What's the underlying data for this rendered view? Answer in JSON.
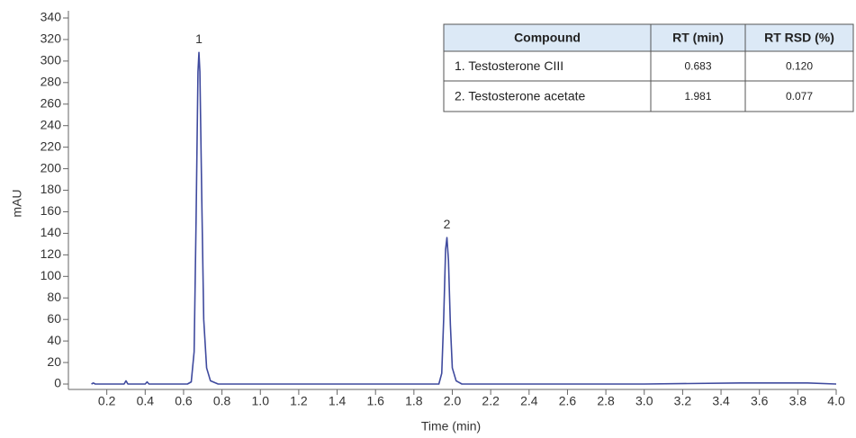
{
  "chart_data": {
    "type": "line",
    "x_label": "Time (min)",
    "y_label": "mAU",
    "xlim": [
      0,
      4
    ],
    "ylim": [
      -5,
      340
    ],
    "xticks": [
      0.2,
      0.4,
      0.6,
      0.8,
      {
        "value": 1,
        "label": "1.0"
      },
      1.2,
      1.4,
      1.6,
      1.8,
      {
        "value": 2,
        "label": "2.0"
      },
      2.2,
      2.4,
      2.6,
      2.8,
      {
        "value": 3,
        "label": "3.0"
      },
      3.2,
      3.4,
      3.6,
      3.8,
      {
        "value": 4,
        "label": "4.0"
      }
    ],
    "yticks": [
      0,
      20,
      40,
      60,
      80,
      100,
      120,
      140,
      160,
      180,
      200,
      220,
      240,
      260,
      280,
      300,
      320,
      340
    ],
    "x": [
      0.12,
      0.13,
      0.14,
      0.29,
      0.3,
      0.31,
      0.4,
      0.41,
      0.42,
      0.62,
      0.64,
      0.655,
      0.665,
      0.675,
      0.68,
      0.685,
      0.695,
      0.705,
      0.72,
      0.74,
      0.78,
      1.93,
      1.945,
      1.955,
      1.965,
      1.972,
      1.98,
      1.99,
      2.0,
      2.02,
      2.05,
      3.0,
      3.5,
      3.85,
      4.0
    ],
    "series": [
      {
        "color": "#3f4a9e",
        "values": [
          0,
          1,
          0,
          0,
          3,
          0,
          0,
          2,
          0,
          0,
          2,
          30,
          150,
          290,
          308,
          290,
          170,
          60,
          15,
          3,
          0,
          0,
          10,
          60,
          125,
          136,
          115,
          55,
          15,
          3,
          0,
          0,
          1,
          1,
          0
        ]
      }
    ],
    "annotations": [
      {
        "text": "1",
        "x": 0.68,
        "y": 308
      },
      {
        "text": "2",
        "x": 1.972,
        "y": 136
      }
    ],
    "table": {
      "columns": [
        "Compound",
        "RT (min)",
        "RT RSD (%)"
      ],
      "rows": [
        [
          "1. Testosterone CIII",
          "0.683",
          "0.120"
        ],
        [
          "2. Testosterone acetate",
          "1.981",
          "0.077"
        ]
      ]
    }
  }
}
